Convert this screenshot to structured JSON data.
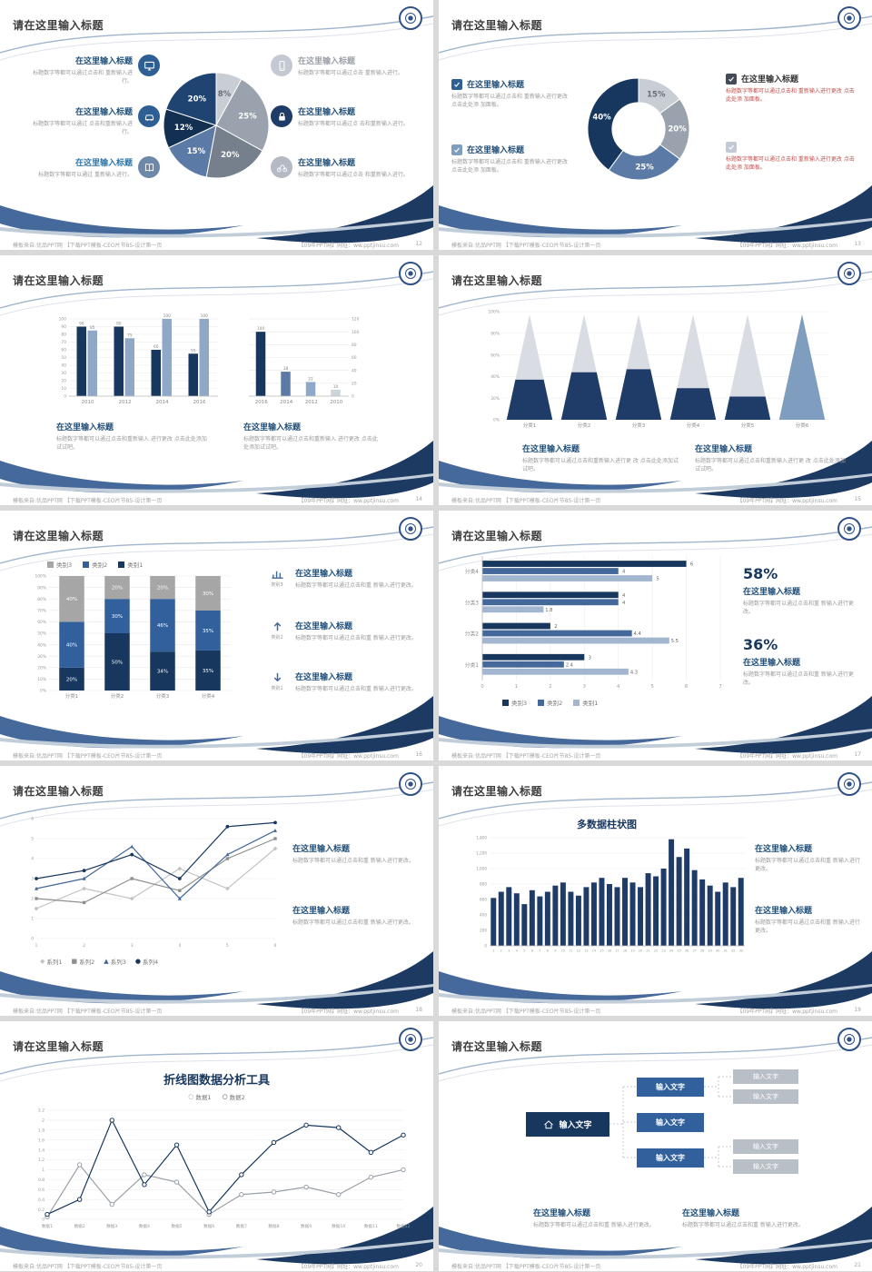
{
  "common": {
    "slide_title": "请在这里输入标题",
    "footer_left": "模板来自:优品PPT网 【下载PPT模板-CEO片节85-设计第一页",
    "footer_right": "【09年PPT网】网址：ww.pptjinsu.com"
  },
  "slides": [
    {
      "page_no": "12",
      "left_items": [
        {
          "title": "在这里输入标题",
          "text": "标题数字等都可以通过点击和 重新输入进行。",
          "icon_bg": "#2e5f94",
          "title_color": "#1f4e79"
        },
        {
          "title": "在这里输入标题",
          "text": "标题数字等都可以通过 点击和重新输入进行。",
          "icon_bg": "#2e5f94",
          "title_color": "#1f4e79"
        },
        {
          "title": "在这里输入标题",
          "text": "标题数字等都可以通过 重新输入进行。",
          "icon_bg": "#6e88aa",
          "title_color": "#2e75a8"
        }
      ],
      "right_items": [
        {
          "title": "在这里输入标题",
          "text": "标题数字等都可以通过点击 重新输入进行。",
          "icon_bg": "#c3c9d2",
          "title_color": "#9aa0a8"
        },
        {
          "title": "在这里输入标题",
          "text": "标题数字等都可以通过点 击和重新输入进行。",
          "icon_bg": "#1f3c68",
          "title_color": "#1f4e79"
        },
        {
          "title": "在这里输入标题",
          "text": "标题数字等都可以通过点击 和重新输入进行。",
          "icon_bg": "#b4bac4",
          "title_color": "#1f4e79"
        }
      ],
      "chart": {
        "type": "pie",
        "slices": [
          {
            "label": "8%",
            "value": 8,
            "color": "#c9cdd4",
            "lc": "#6a7078"
          },
          {
            "label": "25%",
            "value": 25,
            "color": "#9aa2ad",
            "lc": "#ffffff"
          },
          {
            "label": "20%",
            "value": 20,
            "color": "#767f8c",
            "lc": "#ffffff"
          },
          {
            "label": "15%",
            "value": 15,
            "color": "#5b7ba6",
            "lc": "#ffffff"
          },
          {
            "label": "12%",
            "value": 12,
            "color": "#132f52",
            "lc": "#ffffff"
          },
          {
            "label": "20%",
            "value": 20,
            "color": "#1f4471",
            "lc": "#ffffff"
          }
        ]
      }
    },
    {
      "page_no": "13",
      "left_items": [
        {
          "title": "在这里输入标题",
          "text": "标题数字等都可以通过点击和 重新输入进行更改 点击此处添 加面板。",
          "check_color": "#2e5f94"
        },
        {
          "title": "在这里输入标题",
          "text": "标题数字等都可以通过点击和 重新输入进行更改 点击此处添 加面板。",
          "check_color": "#7f9dbf"
        }
      ],
      "right_items": [
        {
          "title": "在这里输入标题",
          "text": "标题数字等都可以通过点击和 重新输入进行更改 点击此处添 加面板。",
          "check_color": "#444b57",
          "text_color": "#c0504d"
        },
        {
          "title": "",
          "text": "标题数字等都可以通过点击和 重新输入进行更改 点击此处添 加面板。",
          "check_color": "#c3c9d2",
          "text_color": "#c0504d"
        }
      ],
      "chart": {
        "type": "donut",
        "inner": 0.52,
        "slices": [
          {
            "label": "15%",
            "value": 15,
            "color": "#c9cdd4",
            "lc": "#6a7078"
          },
          {
            "label": "20%",
            "value": 20,
            "color": "#9aa2ad",
            "lc": "#ffffff"
          },
          {
            "label": "25%",
            "value": 25,
            "color": "#5b7ba6",
            "lc": "#ffffff"
          },
          {
            "label": "40%",
            "value": 40,
            "color": "#17375e",
            "lc": "#ffffff"
          }
        ]
      }
    },
    {
      "page_no": "14",
      "blocks": [
        {
          "title": "在这里输入标题",
          "text": "标题数字等都可以通过点击和重新输入 进行更改 点击此处添加试试吧。"
        },
        {
          "title": "在这里输入标题",
          "text": "标题数字等都可以通过点击和重新输入 进行更改 点击此处添加试试吧。"
        }
      ],
      "chart_left": {
        "type": "gbar",
        "categories": [
          "2010",
          "2012",
          "2014",
          "2016"
        ],
        "max": 100,
        "yticks": [
          0,
          10,
          20,
          30,
          40,
          50,
          60,
          70,
          80,
          90,
          100
        ],
        "labels": true,
        "series": [
          {
            "name": "系列1",
            "color": "#17375e",
            "values": [
              90,
              90,
              60,
              55
            ]
          },
          {
            "name": "系列2",
            "color": "#8fa8c8",
            "values": [
              85,
              75,
              100,
              100
            ]
          }
        ]
      },
      "chart_right": {
        "type": "gbar",
        "categories": [
          "2016",
          "2014",
          "2012",
          "2010"
        ],
        "max": 120,
        "yticks": [
          0,
          20,
          40,
          60,
          80,
          100,
          120
        ],
        "labels": true,
        "axis_right": true,
        "series": [
          {
            "name": "系列1",
            "color": "#17375e",
            "colors": [
              "#17375e",
              "#5b7ba6",
              "#8fa8c8",
              "#cdd3db"
            ],
            "values": [
              100,
              38,
              22,
              10
            ]
          }
        ]
      }
    },
    {
      "page_no": "15",
      "blocks": [
        {
          "title": "在这里输入标题",
          "text": "标题数字等都可以通过点击和重新输入进行更 改 点击此处添加试试吧。"
        },
        {
          "title": "在这里输入标题",
          "text": "标题数字等都可以通过点击和重新输入进行更 改 点击此处添加试试吧。"
        }
      ],
      "chart": {
        "type": "pyramid",
        "categories": [
          "分类1",
          "分类2",
          "分类3",
          "分类4",
          "分类5",
          "分类6"
        ],
        "fill": [
          38,
          45,
          48,
          30,
          22,
          100
        ],
        "body_color": "#d9dde3",
        "fill_color": "#1f3c68",
        "full_color": "#7f9dbf",
        "yticks": [
          "0%",
          "20%",
          "40%",
          "60%",
          "80%",
          "100%"
        ]
      }
    },
    {
      "page_no": "16",
      "legend": [
        {
          "label": "类别3",
          "color": "#a6a6a6"
        },
        {
          "label": "类别2",
          "color": "#31609c"
        },
        {
          "label": "类别1",
          "color": "#17375e"
        }
      ],
      "chart": {
        "type": "stacked",
        "categories": [
          "分类1",
          "分类2",
          "分类3",
          "分类4"
        ],
        "yticks": [
          "0%",
          "10%",
          "20%",
          "30%",
          "40%",
          "50%",
          "60%",
          "70%",
          "80%",
          "90%",
          "100%"
        ],
        "series": [
          {
            "name": "类别1",
            "color": "#17375e",
            "values": [
              20,
              50,
              34,
              35
            ]
          },
          {
            "name": "类别2",
            "color": "#31609c",
            "values": [
              40,
              30,
              46,
              35
            ]
          },
          {
            "name": "类别3",
            "color": "#a6a6a6",
            "values": [
              40,
              20,
              20,
              30
            ]
          }
        ]
      },
      "right_items": [
        {
          "caption": "类别3",
          "title": "在这里输入标题",
          "text": "标题数字等都可以通过点击和重 新输入进行更改。"
        },
        {
          "caption": "类别2",
          "title": "在这里输入标题",
          "text": "标题数字等都可以通过点击和重 新输入进行更改。"
        },
        {
          "caption": "类别1",
          "title": "在这里输入标题",
          "text": "标题数字等都可以通过点击和重 新输入进行更改。"
        }
      ]
    },
    {
      "page_no": "17",
      "chart": {
        "type": "hbar",
        "categories": [
          "分类4",
          "分类3",
          "分类2",
          "分类1"
        ],
        "max": 7,
        "xticks": [
          0,
          1,
          2,
          3,
          4,
          5,
          6,
          7
        ],
        "series": [
          {
            "name": "类别3",
            "color": "#17375e",
            "values": [
              6,
              4,
              2,
              3
            ]
          },
          {
            "name": "类别2",
            "color": "#44689a",
            "values": [
              4,
              4,
              4.4,
              2.4
            ]
          },
          {
            "name": "类别1",
            "color": "#a3b6cf",
            "values": [
              5,
              1.8,
              5.5,
              4.3
            ]
          }
        ]
      },
      "legend": [
        {
          "label": "类别3",
          "color": "#17375e"
        },
        {
          "label": "类别2",
          "color": "#44689a"
        },
        {
          "label": "类别1",
          "color": "#a3b6cf"
        }
      ],
      "stats": [
        {
          "value": "58%",
          "title": "在这里输入标题",
          "text": "标题数字等都可以通过点击和重 新输入进行更改。"
        },
        {
          "value": "36%",
          "title": "在这里输入标题",
          "text": "标题数字等都可以通过点击和重 新输入进行更改。"
        }
      ]
    },
    {
      "page_no": "18",
      "chart": {
        "type": "line",
        "x": [
          "1",
          "2",
          "3",
          "4",
          "5",
          "6"
        ],
        "max": 6,
        "yticks": [
          0,
          1,
          2,
          3,
          4,
          5,
          6
        ],
        "series": [
          {
            "name": "系列1",
            "color": "#c3c3c3",
            "marker": "diamond",
            "values": [
              1.5,
              2.5,
              2.0,
              3.5,
              2.5,
              4.5
            ]
          },
          {
            "name": "系列2",
            "color": "#8f8f8f",
            "marker": "square",
            "values": [
              2.0,
              1.8,
              3.0,
              2.4,
              4.0,
              5.0
            ]
          },
          {
            "name": "系列3",
            "color": "#44689a",
            "marker": "triangle",
            "values": [
              2.5,
              3.0,
              4.6,
              2.0,
              4.2,
              5.4
            ]
          },
          {
            "name": "系列4",
            "color": "#17375e",
            "marker": "circle",
            "values": [
              3.0,
              3.4,
              4.2,
              3.0,
              5.6,
              5.8
            ]
          }
        ]
      },
      "legend": [
        {
          "label": "系列1",
          "color": "#c3c3c3",
          "glyph": "◆"
        },
        {
          "label": "系列2",
          "color": "#8f8f8f",
          "glyph": "■"
        },
        {
          "label": "系列3",
          "color": "#44689a",
          "glyph": "▲"
        },
        {
          "label": "系列4",
          "color": "#17375e",
          "glyph": "●"
        }
      ],
      "blocks": [
        {
          "title": "在这里输入标题",
          "text": "标题数字等都可以通过点击和重 新输入进行更改。"
        },
        {
          "title": "在这里输入标题",
          "text": "标题数字等都可以通过点击和重 新输入进行更改。"
        }
      ]
    },
    {
      "page_no": "19",
      "chart_title": "多数据柱状图",
      "chart": {
        "type": "columns",
        "color": "#1f3c68",
        "max": 1400,
        "yticks": [
          "0",
          "200",
          "400",
          "600",
          "800",
          "1,000",
          "1,200",
          "1,400"
        ],
        "values": [
          620,
          700,
          760,
          680,
          540,
          720,
          640,
          700,
          780,
          820,
          700,
          650,
          760,
          820,
          880,
          800,
          760,
          880,
          820,
          760,
          940,
          900,
          1000,
          1380,
          1150,
          1260,
          980,
          860,
          780,
          700,
          820,
          760,
          880
        ]
      },
      "blocks": [
        {
          "title": "在这里输入标题",
          "text": "标题数字等都可以通过点击和重 新输入进行更改。"
        },
        {
          "title": "在这里输入标题",
          "text": "标题数字等都可以通过点击和重 新输入进行更改。"
        }
      ]
    },
    {
      "page_no": "20",
      "chart_title": "折线图数据分析工具",
      "legend": [
        {
          "label": "数据1",
          "color": "#9aa0a8",
          "glyph": "○"
        },
        {
          "label": "数据2",
          "color": "#17375e",
          "glyph": "○"
        }
      ],
      "chart": {
        "type": "line",
        "max": 2.2,
        "x": [
          "数据1",
          "数据2",
          "数据3",
          "数据4",
          "数据5",
          "数据6",
          "数据7",
          "数据8",
          "数据9",
          "数据10",
          "数据11",
          "数据12"
        ],
        "yticks": [
          0,
          0.2,
          0.4,
          0.6,
          0.8,
          1,
          1.2,
          1.4,
          1.6,
          1.8,
          2,
          2.2
        ],
        "series": [
          {
            "name": "数据1",
            "color": "#9aa0a8",
            "marker": "circle-open",
            "values": [
              0.05,
              1.1,
              0.3,
              0.9,
              0.75,
              0.1,
              0.5,
              0.55,
              0.65,
              0.5,
              0.85,
              1.0
            ]
          },
          {
            "name": "数据2",
            "color": "#17375e",
            "marker": "circle-open",
            "values": [
              0.1,
              0.4,
              2.0,
              0.7,
              1.5,
              0.15,
              0.9,
              1.55,
              1.9,
              1.85,
              1.35,
              1.7
            ]
          }
        ]
      }
    },
    {
      "page_no": "21",
      "root": {
        "label": "输入文字"
      },
      "mid_boxes": [
        "输入文字",
        "输入文字",
        "输入文字"
      ],
      "leaf_boxes": [
        "输入文字",
        "输入文字",
        "输入文字",
        "输入文字"
      ],
      "blocks": [
        {
          "title": "在这里输入标题",
          "text": "标题数字等都可以通过点击和重 新输入进行更改。"
        },
        {
          "title": "在这里输入标题",
          "text": "标题数字等都可以通过点击和重 新输入进行更改。"
        }
      ]
    }
  ]
}
